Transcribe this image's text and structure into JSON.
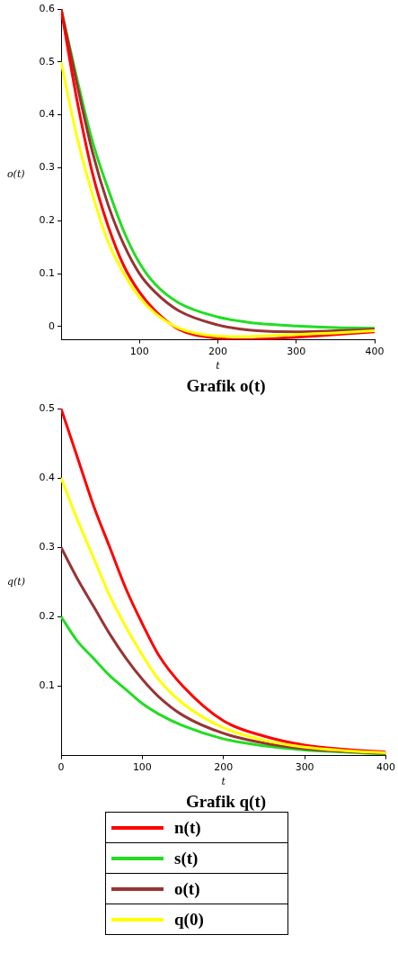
{
  "chart_data": [
    {
      "type": "line",
      "title": "Grafik o(t)",
      "xlabel": "t",
      "ylabel": "o(t)",
      "x": [
        0,
        20,
        40,
        60,
        80,
        100,
        120,
        150,
        200,
        230,
        250,
        300,
        350,
        400
      ],
      "series": [
        {
          "color": "#22dd22",
          "values": [
            0.6,
            0.47,
            0.35,
            0.26,
            0.18,
            0.12,
            0.08,
            0.045,
            0.018,
            0.01,
            0.006,
            0.001,
            -0.002,
            -0.003
          ]
        },
        {
          "color": "#993333",
          "values": [
            0.6,
            0.46,
            0.33,
            0.23,
            0.155,
            0.1,
            0.065,
            0.03,
            0.003,
            -0.005,
            -0.008,
            -0.01,
            -0.008,
            -0.005
          ]
        },
        {
          "color": "#ff0000",
          "values": [
            0.6,
            0.43,
            0.29,
            0.19,
            0.115,
            0.065,
            0.03,
            -0.005,
            -0.022,
            -0.025,
            -0.024,
            -0.02,
            -0.015,
            -0.01
          ]
        },
        {
          "color": "#ffff00",
          "values": [
            0.5,
            0.36,
            0.25,
            0.16,
            0.1,
            0.055,
            0.025,
            -0.003,
            -0.018,
            -0.019,
            -0.018,
            -0.015,
            -0.012,
            -0.008
          ]
        }
      ],
      "xlim": [
        0,
        400
      ],
      "xticks": [
        100,
        200,
        300,
        400
      ],
      "ylim": [
        -0.025,
        0.6
      ],
      "yticks": [
        0,
        0.1,
        0.2,
        0.3,
        0.4,
        0.5,
        0.6
      ],
      "grid": false,
      "legend": false
    },
    {
      "type": "line",
      "title": "Grafik q(t)",
      "xlabel": "t",
      "ylabel": "q(t)",
      "x": [
        0,
        20,
        40,
        60,
        80,
        100,
        120,
        150,
        200,
        250,
        300,
        350,
        400
      ],
      "series": [
        {
          "name": "n(t)",
          "color": "#ff0000",
          "values": [
            0.5,
            0.43,
            0.36,
            0.3,
            0.24,
            0.19,
            0.145,
            0.1,
            0.05,
            0.028,
            0.015,
            0.009,
            0.005
          ]
        },
        {
          "name": "s(t)",
          "color": "#22dd22",
          "values": [
            0.2,
            0.165,
            0.14,
            0.115,
            0.095,
            0.075,
            0.06,
            0.043,
            0.024,
            0.014,
            0.008,
            0.005,
            0.002
          ]
        },
        {
          "name": "o(t)",
          "color": "#993333",
          "values": [
            0.3,
            0.255,
            0.215,
            0.175,
            0.14,
            0.11,
            0.085,
            0.058,
            0.032,
            0.018,
            0.01,
            0.006,
            0.003
          ]
        },
        {
          "name": "q(0)",
          "color": "#ffff00",
          "values": [
            0.4,
            0.34,
            0.285,
            0.23,
            0.185,
            0.145,
            0.11,
            0.075,
            0.04,
            0.022,
            0.012,
            0.007,
            0.004
          ]
        }
      ],
      "xlim": [
        0,
        400
      ],
      "xticks": [
        0,
        100,
        200,
        300,
        400
      ],
      "ylim": [
        0,
        0.5
      ],
      "yticks": [
        0.1,
        0.2,
        0.3,
        0.4,
        0.5
      ],
      "grid": false,
      "legend": "bottom"
    }
  ]
}
